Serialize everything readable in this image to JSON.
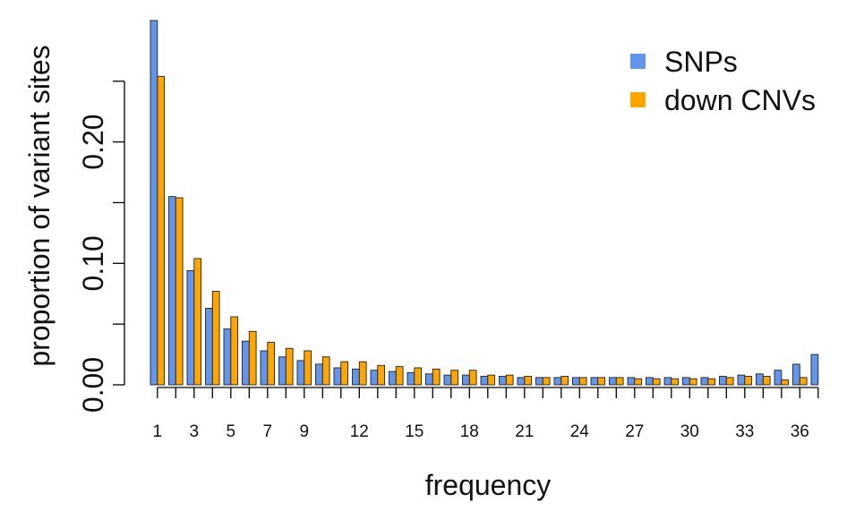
{
  "chart_data": {
    "type": "bar",
    "xlabel": "frequency",
    "ylabel": "proportion of variant sites",
    "ylim": [
      0,
      0.3
    ],
    "y_ticks": [
      0,
      0.05,
      0.1,
      0.15,
      0.2,
      0.25
    ],
    "y_tick_labels": [
      "0.00",
      "",
      "0.10",
      "",
      "0.20",
      ""
    ],
    "x_tick_labels": [
      "1",
      "3",
      "5",
      "7",
      "9",
      "12",
      "15",
      "18",
      "21",
      "24",
      "27",
      "30",
      "33",
      "36"
    ],
    "categories": [
      1,
      2,
      3,
      4,
      5,
      6,
      7,
      8,
      9,
      10,
      11,
      12,
      13,
      14,
      15,
      16,
      17,
      18,
      19,
      20,
      21,
      22,
      23,
      24,
      25,
      26,
      27,
      28,
      29,
      30,
      31,
      32,
      33,
      34,
      35,
      36,
      37
    ],
    "series": [
      {
        "name": "SNPs",
        "color": "#6495ED",
        "values": [
          0.3,
          0.155,
          0.094,
          0.063,
          0.046,
          0.036,
          0.028,
          0.023,
          0.02,
          0.017,
          0.014,
          0.013,
          0.012,
          0.011,
          0.01,
          0.009,
          0.008,
          0.008,
          0.007,
          0.007,
          0.006,
          0.006,
          0.006,
          0.006,
          0.006,
          0.006,
          0.006,
          0.006,
          0.006,
          0.006,
          0.006,
          0.007,
          0.008,
          0.009,
          0.012,
          0.017,
          0.025
        ]
      },
      {
        "name": "down CNVs",
        "color": "#FFA500",
        "values": [
          0.254,
          0.154,
          0.104,
          0.077,
          0.056,
          0.044,
          0.035,
          0.03,
          0.028,
          0.023,
          0.019,
          0.019,
          0.016,
          0.015,
          0.014,
          0.013,
          0.012,
          0.012,
          0.008,
          0.008,
          0.007,
          0.006,
          0.007,
          0.006,
          0.006,
          0.006,
          0.005,
          0.005,
          0.005,
          0.005,
          0.005,
          0.006,
          0.007,
          0.007,
          0.004,
          0.006,
          0.0
        ]
      }
    ],
    "legend": {
      "position": "top-right",
      "entries": [
        "SNPs",
        "down CNVs"
      ]
    },
    "grid": false
  }
}
